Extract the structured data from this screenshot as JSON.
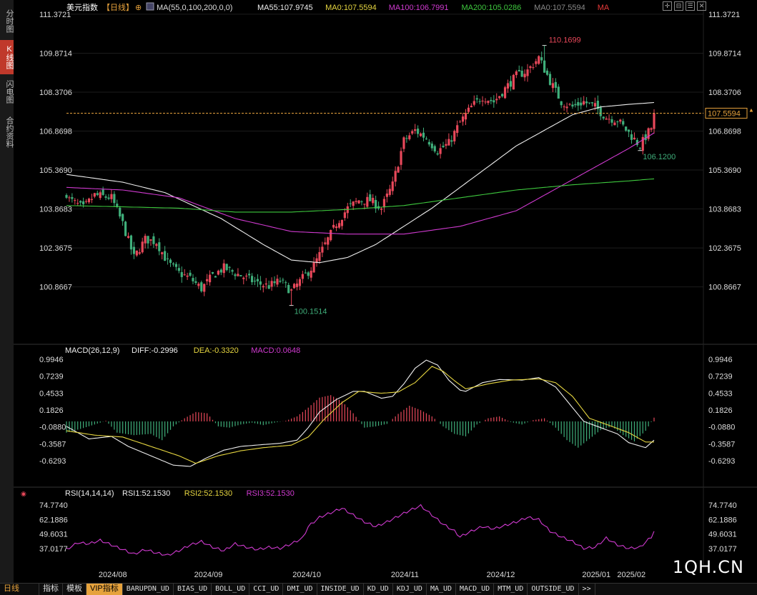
{
  "sidebar": {
    "tabs": [
      {
        "label": "分时图",
        "active": false
      },
      {
        "label": "K线图",
        "active": true
      },
      {
        "label": "闪电图",
        "active": false
      },
      {
        "label": "合约资料",
        "active": false
      }
    ]
  },
  "header": {
    "instrument": "美元指数",
    "period": "【日线】",
    "ma_legend": [
      {
        "text": "MA(55,0,100,200,0,0)",
        "color": "#dddddd"
      },
      {
        "text": "MA55:107.9745",
        "color": "#eeeeee"
      },
      {
        "text": "MA0:107.5594",
        "color": "#e6d640"
      },
      {
        "text": "MA100:106.7991",
        "color": "#d03ad0"
      },
      {
        "text": "MA200:105.0286",
        "color": "#3ec93e"
      },
      {
        "text": "MA0:107.5594",
        "color": "#888888"
      },
      {
        "text": "MA",
        "color": "#e83a3a"
      }
    ]
  },
  "toolbar": {
    "icons": [
      "crosshair-icon",
      "collapse-icon",
      "list-icon",
      "close-icon"
    ],
    "glyphs": [
      "✛",
      "⊟",
      "☰",
      "✕"
    ]
  },
  "colors": {
    "up": "#e8485a",
    "down": "#3fae7a",
    "ma55": "#eeeeee",
    "ma100": "#d03ad0",
    "ma200": "#3ec93e",
    "dea": "#e6d640",
    "rsi": "#d03ad0",
    "grid": "#1c1c1c"
  },
  "chart_data": [
    {
      "type": "candlestick",
      "title": "美元指数 【日线】",
      "ylim": [
        99.37,
        111.37
      ],
      "y_ticks": [
        "111.3721",
        "109.8714",
        "108.3706",
        "106.8698",
        "105.3690",
        "103.8683",
        "102.3675",
        "100.8667"
      ],
      "x_ticks": [
        "2024/08",
        "2024/09",
        "2024/10",
        "2024/11",
        "2024/12",
        "2025/01",
        "2025/02"
      ],
      "annotations": {
        "high": "110.1699",
        "low_a": "100.1514",
        "low_b": "106.1200",
        "last": "107.5594"
      },
      "ohlc_anchors": [
        [
          0,
          104.3
        ],
        [
          6,
          103.9
        ],
        [
          10,
          104.4
        ],
        [
          16,
          104.3
        ],
        [
          20,
          103.3
        ],
        [
          24,
          102.0
        ],
        [
          28,
          102.7
        ],
        [
          32,
          102.6
        ],
        [
          36,
          101.8
        ],
        [
          40,
          101.4
        ],
        [
          44,
          101.2
        ],
        [
          48,
          100.8
        ],
        [
          52,
          101.3
        ],
        [
          56,
          101.6
        ],
        [
          60,
          101.4
        ],
        [
          64,
          101.2
        ],
        [
          68,
          101.0
        ],
        [
          72,
          100.9
        ],
        [
          76,
          101.1
        ],
        [
          80,
          100.7
        ],
        [
          84,
          101.2
        ],
        [
          88,
          101.7
        ],
        [
          92,
          102.5
        ],
        [
          96,
          103.3
        ],
        [
          100,
          103.9
        ],
        [
          104,
          104.2
        ],
        [
          108,
          104.2
        ],
        [
          112,
          103.9
        ],
        [
          116,
          104.8
        ],
        [
          120,
          106.5
        ],
        [
          124,
          106.9
        ],
        [
          128,
          106.6
        ],
        [
          132,
          106.1
        ],
        [
          136,
          106.4
        ],
        [
          140,
          107.2
        ],
        [
          144,
          107.8
        ],
        [
          148,
          108.2
        ],
        [
          152,
          108.0
        ],
        [
          156,
          108.5
        ],
        [
          160,
          109.0
        ],
        [
          164,
          109.2
        ],
        [
          168,
          109.7
        ],
        [
          172,
          108.8
        ],
        [
          176,
          108.0
        ],
        [
          180,
          107.8
        ],
        [
          184,
          108.0
        ],
        [
          188,
          107.8
        ],
        [
          192,
          107.4
        ],
        [
          196,
          107.3
        ],
        [
          200,
          106.8
        ],
        [
          204,
          106.3
        ],
        [
          208,
          107.0
        ],
        [
          209,
          107.56
        ]
      ],
      "series": [
        {
          "name": "MA55",
          "values": [
            [
              0,
              105.2
            ],
            [
              20,
              104.9
            ],
            [
              35,
              104.5
            ],
            [
              55,
              103.5
            ],
            [
              70,
              102.5
            ],
            [
              80,
              101.9
            ],
            [
              90,
              101.8
            ],
            [
              100,
              102.0
            ],
            [
              110,
              102.5
            ],
            [
              120,
              103.2
            ],
            [
              130,
              103.9
            ],
            [
              140,
              104.7
            ],
            [
              150,
              105.5
            ],
            [
              160,
              106.3
            ],
            [
              170,
              106.9
            ],
            [
              180,
              107.5
            ],
            [
              190,
              107.8
            ],
            [
              200,
              107.9
            ],
            [
              209,
              107.97
            ]
          ]
        },
        {
          "name": "MA100",
          "values": [
            [
              0,
              104.7
            ],
            [
              20,
              104.6
            ],
            [
              40,
              104.3
            ],
            [
              60,
              103.5
            ],
            [
              80,
              103.0
            ],
            [
              100,
              102.9
            ],
            [
              120,
              102.9
            ],
            [
              140,
              103.2
            ],
            [
              160,
              103.8
            ],
            [
              170,
              104.4
            ],
            [
              180,
              105.0
            ],
            [
              190,
              105.6
            ],
            [
              200,
              106.2
            ],
            [
              209,
              106.8
            ]
          ]
        },
        {
          "name": "MA200",
          "values": [
            [
              0,
              104.0
            ],
            [
              40,
              103.9
            ],
            [
              60,
              103.75
            ],
            [
              80,
              103.75
            ],
            [
              100,
              103.85
            ],
            [
              120,
              104.0
            ],
            [
              140,
              104.3
            ],
            [
              160,
              104.6
            ],
            [
              180,
              104.8
            ],
            [
              200,
              104.95
            ],
            [
              209,
              105.03
            ]
          ]
        }
      ]
    },
    {
      "type": "macd",
      "title": "MACD(26,12,9)",
      "legend": [
        {
          "text": "DIFF:-0.2996",
          "color": "#eeeeee"
        },
        {
          "text": "DEA:-0.3320",
          "color": "#e6d640"
        },
        {
          "text": "MACD:0.0648",
          "color": "#d03ad0"
        }
      ],
      "ylim": [
        -0.8,
        1.05
      ],
      "y_ticks": [
        "0.9946",
        "0.7239",
        "0.4533",
        "0.1826",
        "-0.0880",
        "-0.3587",
        "-0.6293"
      ],
      "diff": [
        [
          0,
          -0.08
        ],
        [
          8,
          -0.28
        ],
        [
          16,
          -0.24
        ],
        [
          22,
          -0.4
        ],
        [
          30,
          -0.55
        ],
        [
          38,
          -0.7
        ],
        [
          44,
          -0.72
        ],
        [
          50,
          -0.58
        ],
        [
          56,
          -0.46
        ],
        [
          62,
          -0.4
        ],
        [
          70,
          -0.37
        ],
        [
          76,
          -0.35
        ],
        [
          82,
          -0.3
        ],
        [
          86,
          -0.1
        ],
        [
          90,
          0.15
        ],
        [
          96,
          0.35
        ],
        [
          102,
          0.48
        ],
        [
          106,
          0.48
        ],
        [
          112,
          0.37
        ],
        [
          116,
          0.4
        ],
        [
          120,
          0.6
        ],
        [
          124,
          0.85
        ],
        [
          128,
          0.98
        ],
        [
          132,
          0.9
        ],
        [
          136,
          0.66
        ],
        [
          140,
          0.5
        ],
        [
          142,
          0.48
        ],
        [
          148,
          0.62
        ],
        [
          154,
          0.67
        ],
        [
          162,
          0.66
        ],
        [
          168,
          0.7
        ],
        [
          174,
          0.55
        ],
        [
          180,
          0.22
        ],
        [
          184,
          0.0
        ],
        [
          190,
          -0.1
        ],
        [
          196,
          -0.2
        ],
        [
          200,
          -0.34
        ],
        [
          206,
          -0.42
        ],
        [
          209,
          -0.3
        ]
      ],
      "dea": [
        [
          0,
          -0.15
        ],
        [
          10,
          -0.22
        ],
        [
          20,
          -0.25
        ],
        [
          30,
          -0.4
        ],
        [
          40,
          -0.55
        ],
        [
          46,
          -0.67
        ],
        [
          54,
          -0.55
        ],
        [
          62,
          -0.47
        ],
        [
          70,
          -0.42
        ],
        [
          80,
          -0.38
        ],
        [
          86,
          -0.25
        ],
        [
          92,
          0.05
        ],
        [
          98,
          0.3
        ],
        [
          104,
          0.48
        ],
        [
          112,
          0.45
        ],
        [
          118,
          0.47
        ],
        [
          124,
          0.62
        ],
        [
          130,
          0.88
        ],
        [
          134,
          0.8
        ],
        [
          138,
          0.65
        ],
        [
          142,
          0.52
        ],
        [
          150,
          0.6
        ],
        [
          158,
          0.66
        ],
        [
          168,
          0.68
        ],
        [
          174,
          0.62
        ],
        [
          180,
          0.4
        ],
        [
          186,
          0.05
        ],
        [
          194,
          -0.08
        ],
        [
          200,
          -0.18
        ],
        [
          206,
          -0.33
        ],
        [
          209,
          -0.33
        ]
      ],
      "hist": [
        [
          0,
          -0.18
        ],
        [
          5,
          -0.12
        ],
        [
          10,
          -0.05
        ],
        [
          14,
          0.01
        ],
        [
          18,
          -0.18
        ],
        [
          24,
          -0.22
        ],
        [
          30,
          -0.2
        ],
        [
          34,
          -0.3
        ],
        [
          38,
          -0.08
        ],
        [
          42,
          0.05
        ],
        [
          46,
          0.15
        ],
        [
          50,
          0.13
        ],
        [
          54,
          -0.08
        ],
        [
          58,
          -0.1
        ],
        [
          62,
          -0.05
        ],
        [
          66,
          -0.02
        ],
        [
          70,
          -0.06
        ],
        [
          74,
          -0.02
        ],
        [
          78,
          0.01
        ],
        [
          82,
          0.08
        ],
        [
          86,
          0.22
        ],
        [
          90,
          0.38
        ],
        [
          94,
          0.42
        ],
        [
          98,
          0.32
        ],
        [
          102,
          0.13
        ],
        [
          106,
          -0.1
        ],
        [
          110,
          -0.08
        ],
        [
          114,
          -0.04
        ],
        [
          118,
          0.12
        ],
        [
          122,
          0.25
        ],
        [
          126,
          0.18
        ],
        [
          130,
          0.08
        ],
        [
          134,
          -0.08
        ],
        [
          138,
          -0.2
        ],
        [
          142,
          -0.24
        ],
        [
          146,
          -0.05
        ],
        [
          150,
          0.05
        ],
        [
          154,
          0.08
        ],
        [
          158,
          -0.01
        ],
        [
          162,
          -0.05
        ],
        [
          166,
          0.02
        ],
        [
          170,
          0.05
        ],
        [
          174,
          -0.1
        ],
        [
          178,
          -0.3
        ],
        [
          182,
          -0.42
        ],
        [
          186,
          -0.28
        ],
        [
          190,
          -0.14
        ],
        [
          194,
          -0.08
        ],
        [
          198,
          -0.22
        ],
        [
          202,
          -0.32
        ],
        [
          206,
          -0.15
        ],
        [
          209,
          0.06
        ]
      ]
    },
    {
      "type": "line",
      "title": "RSI(14,14,14)",
      "legend": [
        {
          "text": "RSI1:52.1530",
          "color": "#eeeeee"
        },
        {
          "text": "RSI2:52.1530",
          "color": "#e6d640"
        },
        {
          "text": "RSI3:52.1530",
          "color": "#d03ad0"
        }
      ],
      "ylim": [
        32.0,
        78.0
      ],
      "y_ticks": [
        "74.7740",
        "62.1886",
        "49.6031",
        "37.0177"
      ],
      "values": [
        [
          0,
          36
        ],
        [
          4,
          42
        ],
        [
          8,
          41
        ],
        [
          12,
          44
        ],
        [
          16,
          40
        ],
        [
          20,
          36
        ],
        [
          24,
          32
        ],
        [
          28,
          36
        ],
        [
          32,
          33
        ],
        [
          36,
          31
        ],
        [
          40,
          35
        ],
        [
          44,
          40
        ],
        [
          48,
          43
        ],
        [
          52,
          38
        ],
        [
          56,
          35
        ],
        [
          60,
          41
        ],
        [
          64,
          38
        ],
        [
          68,
          36
        ],
        [
          72,
          38
        ],
        [
          76,
          37
        ],
        [
          80,
          41
        ],
        [
          84,
          46
        ],
        [
          86,
          56
        ],
        [
          90,
          64
        ],
        [
          94,
          68
        ],
        [
          98,
          72
        ],
        [
          102,
          66
        ],
        [
          106,
          60
        ],
        [
          110,
          56
        ],
        [
          114,
          60
        ],
        [
          118,
          65
        ],
        [
          122,
          70
        ],
        [
          126,
          74
        ],
        [
          130,
          66
        ],
        [
          134,
          58
        ],
        [
          138,
          52
        ],
        [
          140,
          47
        ],
        [
          144,
          52
        ],
        [
          148,
          56
        ],
        [
          152,
          54
        ],
        [
          156,
          57
        ],
        [
          160,
          60
        ],
        [
          164,
          64
        ],
        [
          168,
          62
        ],
        [
          172,
          52
        ],
        [
          176,
          47
        ],
        [
          180,
          43
        ],
        [
          184,
          37
        ],
        [
          188,
          38
        ],
        [
          192,
          46
        ],
        [
          196,
          40
        ],
        [
          200,
          37
        ],
        [
          204,
          38
        ],
        [
          208,
          47
        ],
        [
          209,
          52
        ]
      ]
    }
  ],
  "bottombar": {
    "period_label": "日线",
    "tabs": [
      "指标",
      "模板",
      "VIP指标",
      "BARUPDN_UD",
      "BIAS_UD",
      "BOLL_UD",
      "CCI_UD",
      "DMI_UD",
      "INSIDE_UD",
      "KD_UD",
      "KDJ_UD",
      "MA_UD",
      "MACD_UD",
      "MTM_UD",
      "OUTSIDE_UD",
      ">>"
    ]
  },
  "brand": "1QH.CN"
}
